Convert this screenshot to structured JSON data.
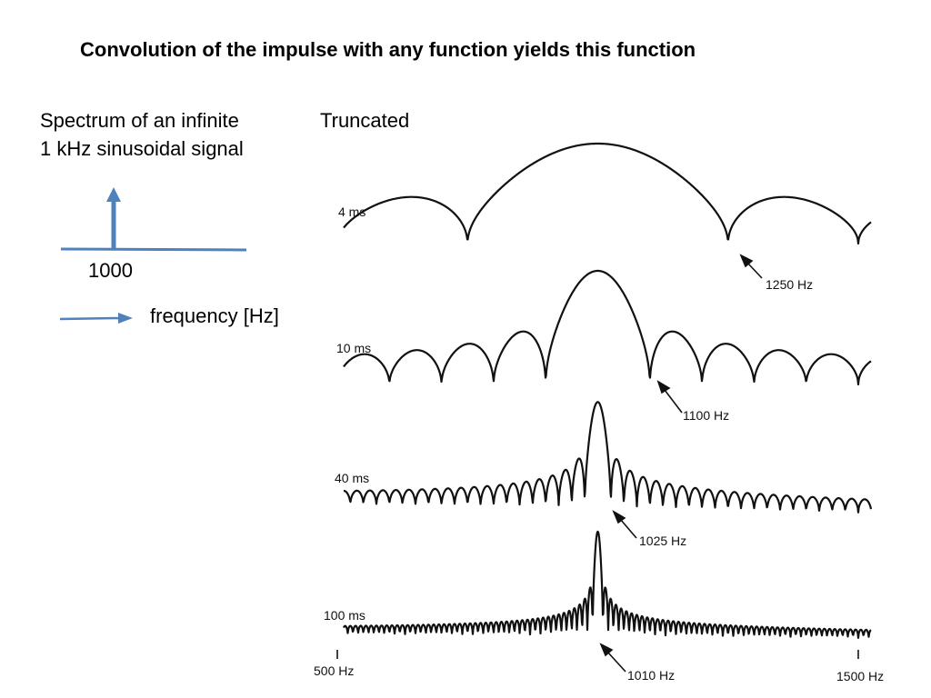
{
  "slide": {
    "title": "Convolution of the impulse with any function yields this function"
  },
  "left_panel": {
    "caption_line1": "Spectrum of an infinite",
    "caption_line2": "1 kHz sinusoidal signal",
    "impulse_position_label": "1000",
    "axis_label": "frequency [Hz]",
    "accent_color": "#4F81BD"
  },
  "right_panel": {
    "heading": "Truncated",
    "traces": [
      {
        "duration_label": "4 ms",
        "first_zero_label": "1250 Hz",
        "first_zero_hz": 1250
      },
      {
        "duration_label": "10 ms",
        "first_zero_label": "1100 Hz",
        "first_zero_hz": 1100
      },
      {
        "duration_label": "40 ms",
        "first_zero_label": "1025 Hz",
        "first_zero_hz": 1025
      },
      {
        "duration_label": "100 ms",
        "first_zero_label": "1010 Hz",
        "first_zero_hz": 1010
      }
    ],
    "axis_start_label": "500 Hz",
    "axis_end_label": "1500 Hz",
    "axis_min_hz": 500,
    "axis_max_hz": 1500,
    "center_hz": 1000
  }
}
